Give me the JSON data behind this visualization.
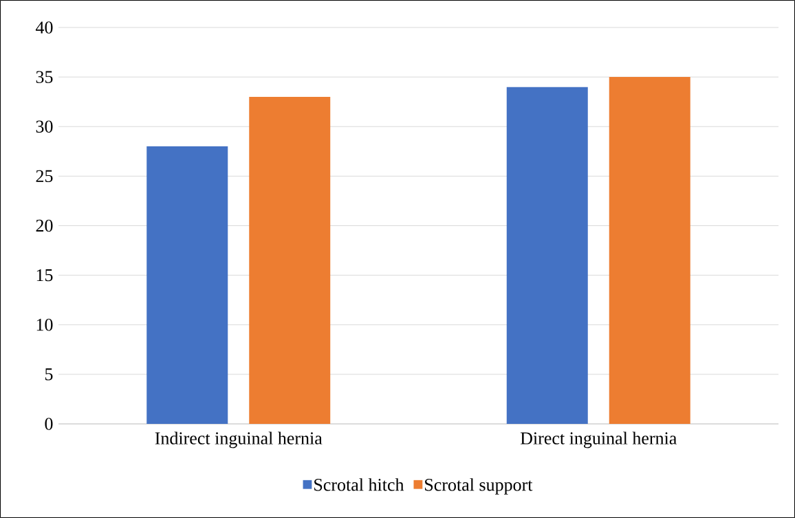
{
  "chart_data": {
    "type": "bar",
    "categories": [
      "Indirect inguinal hernia",
      "Direct inguinal hernia"
    ],
    "series": [
      {
        "name": "Scrotal hitch",
        "color": "#4472c4",
        "values": [
          28,
          34
        ]
      },
      {
        "name": "Scrotal support",
        "color": "#ed7d31",
        "values": [
          33,
          35
        ]
      }
    ],
    "ylim": [
      0,
      40
    ],
    "yticks": [
      0,
      5,
      10,
      15,
      20,
      25,
      30,
      35,
      40
    ],
    "grid": "y",
    "legend": "bottom"
  }
}
